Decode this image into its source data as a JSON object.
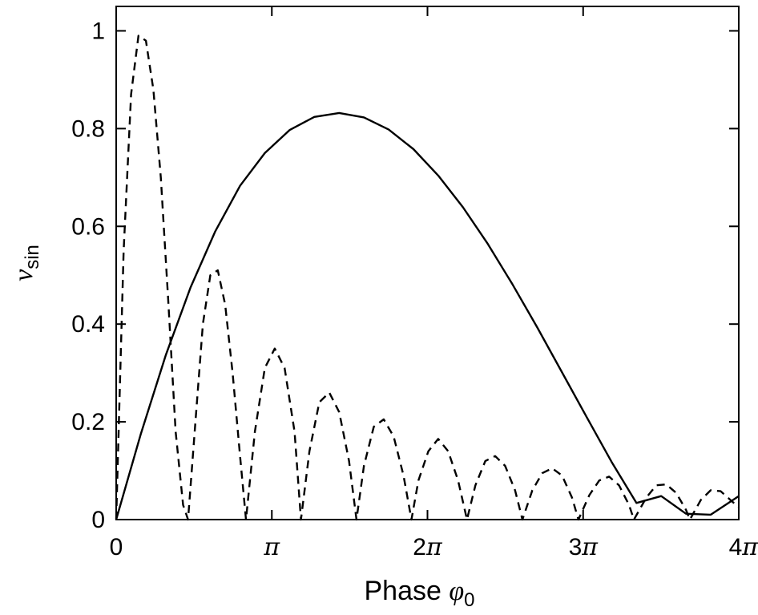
{
  "chart_data": {
    "type": "line",
    "xlabel": "Phase",
    "xlabel_symbol": "φ",
    "xlabel_subscript": "0",
    "ylabel_symbol": "v",
    "ylabel_subscript": "sin",
    "xlim": [
      0,
      12.566
    ],
    "ylim": [
      0,
      1.05
    ],
    "xticks": [
      {
        "value": 0,
        "coef": "0",
        "pi": ""
      },
      {
        "value": 3.1416,
        "coef": "",
        "pi": "π"
      },
      {
        "value": 6.2832,
        "coef": "2",
        "pi": "π"
      },
      {
        "value": 9.4248,
        "coef": "3",
        "pi": "π"
      },
      {
        "value": 12.566,
        "coef": "4",
        "pi": "π"
      }
    ],
    "yticks": [
      {
        "value": 0,
        "label": "0"
      },
      {
        "value": 0.2,
        "label": "0.2"
      },
      {
        "value": 0.4,
        "label": "0.4"
      },
      {
        "value": 0.6,
        "label": "0.6"
      },
      {
        "value": 0.8,
        "label": "0.8"
      },
      {
        "value": 1,
        "label": "1"
      }
    ],
    "grid": false,
    "legend": "none",
    "series": [
      {
        "style": "solid",
        "x": [
          0,
          0.5,
          1.0,
          1.5,
          2.0,
          2.5,
          3.0,
          3.5,
          4.0,
          4.5,
          5.0,
          5.5,
          6.0,
          6.5,
          7.0,
          7.5,
          8.0,
          8.5,
          9.0,
          9.5,
          10.0,
          10.5,
          11.0,
          11.5,
          12.0,
          12.566
        ],
        "y": [
          0.0,
          0.176,
          0.336,
          0.475,
          0.59,
          0.683,
          0.75,
          0.797,
          0.824,
          0.832,
          0.823,
          0.798,
          0.758,
          0.704,
          0.639,
          0.564,
          0.481,
          0.393,
          0.301,
          0.209,
          0.118,
          0.034,
          0.048,
          0.012,
          0.01,
          0.048
        ]
      },
      {
        "style": "dashed",
        "x": [
          0,
          0.15,
          0.3,
          0.45,
          0.6,
          0.75,
          0.9,
          1.05,
          1.2,
          1.35,
          1.45,
          1.6,
          1.75,
          1.9,
          2.05,
          2.2,
          2.35,
          2.5,
          2.62,
          2.8,
          3.0,
          3.2,
          3.4,
          3.6,
          3.73,
          3.9,
          4.1,
          4.3,
          4.5,
          4.7,
          4.85,
          5.0,
          5.2,
          5.4,
          5.6,
          5.8,
          5.96,
          6.1,
          6.3,
          6.5,
          6.7,
          6.9,
          7.08,
          7.25,
          7.45,
          7.65,
          7.85,
          8.05,
          8.2,
          8.4,
          8.6,
          8.8,
          9.0,
          9.2,
          9.33,
          9.55,
          9.75,
          9.95,
          10.15,
          10.35,
          10.45,
          10.7,
          10.9,
          11.1,
          11.3,
          11.5,
          11.58,
          11.8,
          12.0,
          12.2,
          12.4,
          12.566
        ],
        "y": [
          0,
          0.55,
          0.87,
          0.99,
          0.98,
          0.88,
          0.7,
          0.45,
          0.18,
          0.03,
          0.0,
          0.2,
          0.4,
          0.5,
          0.51,
          0.44,
          0.3,
          0.13,
          0.0,
          0.18,
          0.31,
          0.35,
          0.31,
          0.18,
          0.0,
          0.14,
          0.24,
          0.26,
          0.22,
          0.12,
          0.0,
          0.11,
          0.19,
          0.205,
          0.17,
          0.09,
          0.0,
          0.08,
          0.14,
          0.165,
          0.14,
          0.08,
          0.0,
          0.07,
          0.12,
          0.13,
          0.11,
          0.06,
          0.0,
          0.06,
          0.095,
          0.105,
          0.09,
          0.045,
          0.0,
          0.05,
          0.08,
          0.088,
          0.07,
          0.03,
          0.0,
          0.045,
          0.07,
          0.072,
          0.055,
          0.02,
          0.0,
          0.04,
          0.06,
          0.058,
          0.04,
          0.025
        ]
      }
    ]
  }
}
